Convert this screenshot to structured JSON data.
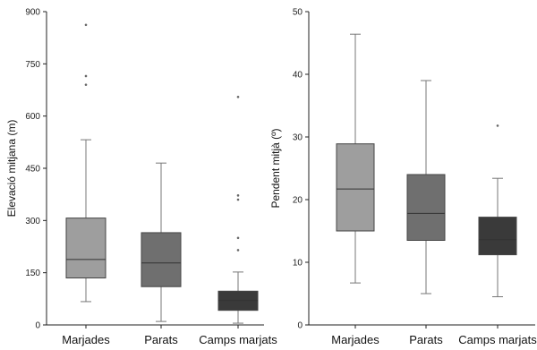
{
  "chart_data": [
    {
      "type": "box",
      "ylabel": "Elevació mitjana (m)",
      "ylim": [
        0,
        900
      ],
      "yticks": [
        "0",
        "150",
        "300",
        "450",
        "600",
        "750",
        "900"
      ],
      "ytick_values": [
        0,
        150,
        300,
        450,
        600,
        750,
        900
      ],
      "categories": [
        "Marjades",
        "Parats",
        "Camps marjats"
      ],
      "boxes": [
        {
          "whisker_low": 67,
          "q1": 135,
          "median": 188,
          "q3": 307,
          "whisker_high": 532,
          "outliers": [
            690,
            715,
            862
          ],
          "color": "#9e9e9e"
        },
        {
          "whisker_low": 10,
          "q1": 110,
          "median": 178,
          "q3": 265,
          "whisker_high": 465,
          "outliers": [],
          "color": "#6f6f6f"
        },
        {
          "whisker_low": 5,
          "q1": 42,
          "median": 70,
          "q3": 97,
          "whisker_high": 152,
          "outliers": [
            215,
            250,
            360,
            372,
            655
          ],
          "color": "#3a3a3a"
        }
      ]
    },
    {
      "type": "box",
      "ylabel": "Pendent mitjà (º)",
      "ylim": [
        0,
        50
      ],
      "yticks": [
        "0",
        "10",
        "20",
        "30",
        "40",
        "50"
      ],
      "ytick_values": [
        0,
        10,
        20,
        30,
        40,
        50
      ],
      "categories": [
        "Marjades",
        "Parats",
        "Camps marjats"
      ],
      "boxes": [
        {
          "whisker_low": 6.7,
          "q1": 15,
          "median": 21.7,
          "q3": 28.9,
          "whisker_high": 46.4,
          "outliers": [],
          "color": "#9e9e9e"
        },
        {
          "whisker_low": 5,
          "q1": 13.5,
          "median": 17.8,
          "q3": 24,
          "whisker_high": 39,
          "outliers": [],
          "color": "#6f6f6f"
        },
        {
          "whisker_low": 4.5,
          "q1": 11.2,
          "median": 13.6,
          "q3": 17.2,
          "whisker_high": 23.4,
          "outliers": [
            31.8
          ],
          "color": "#3a3a3a"
        }
      ]
    }
  ]
}
